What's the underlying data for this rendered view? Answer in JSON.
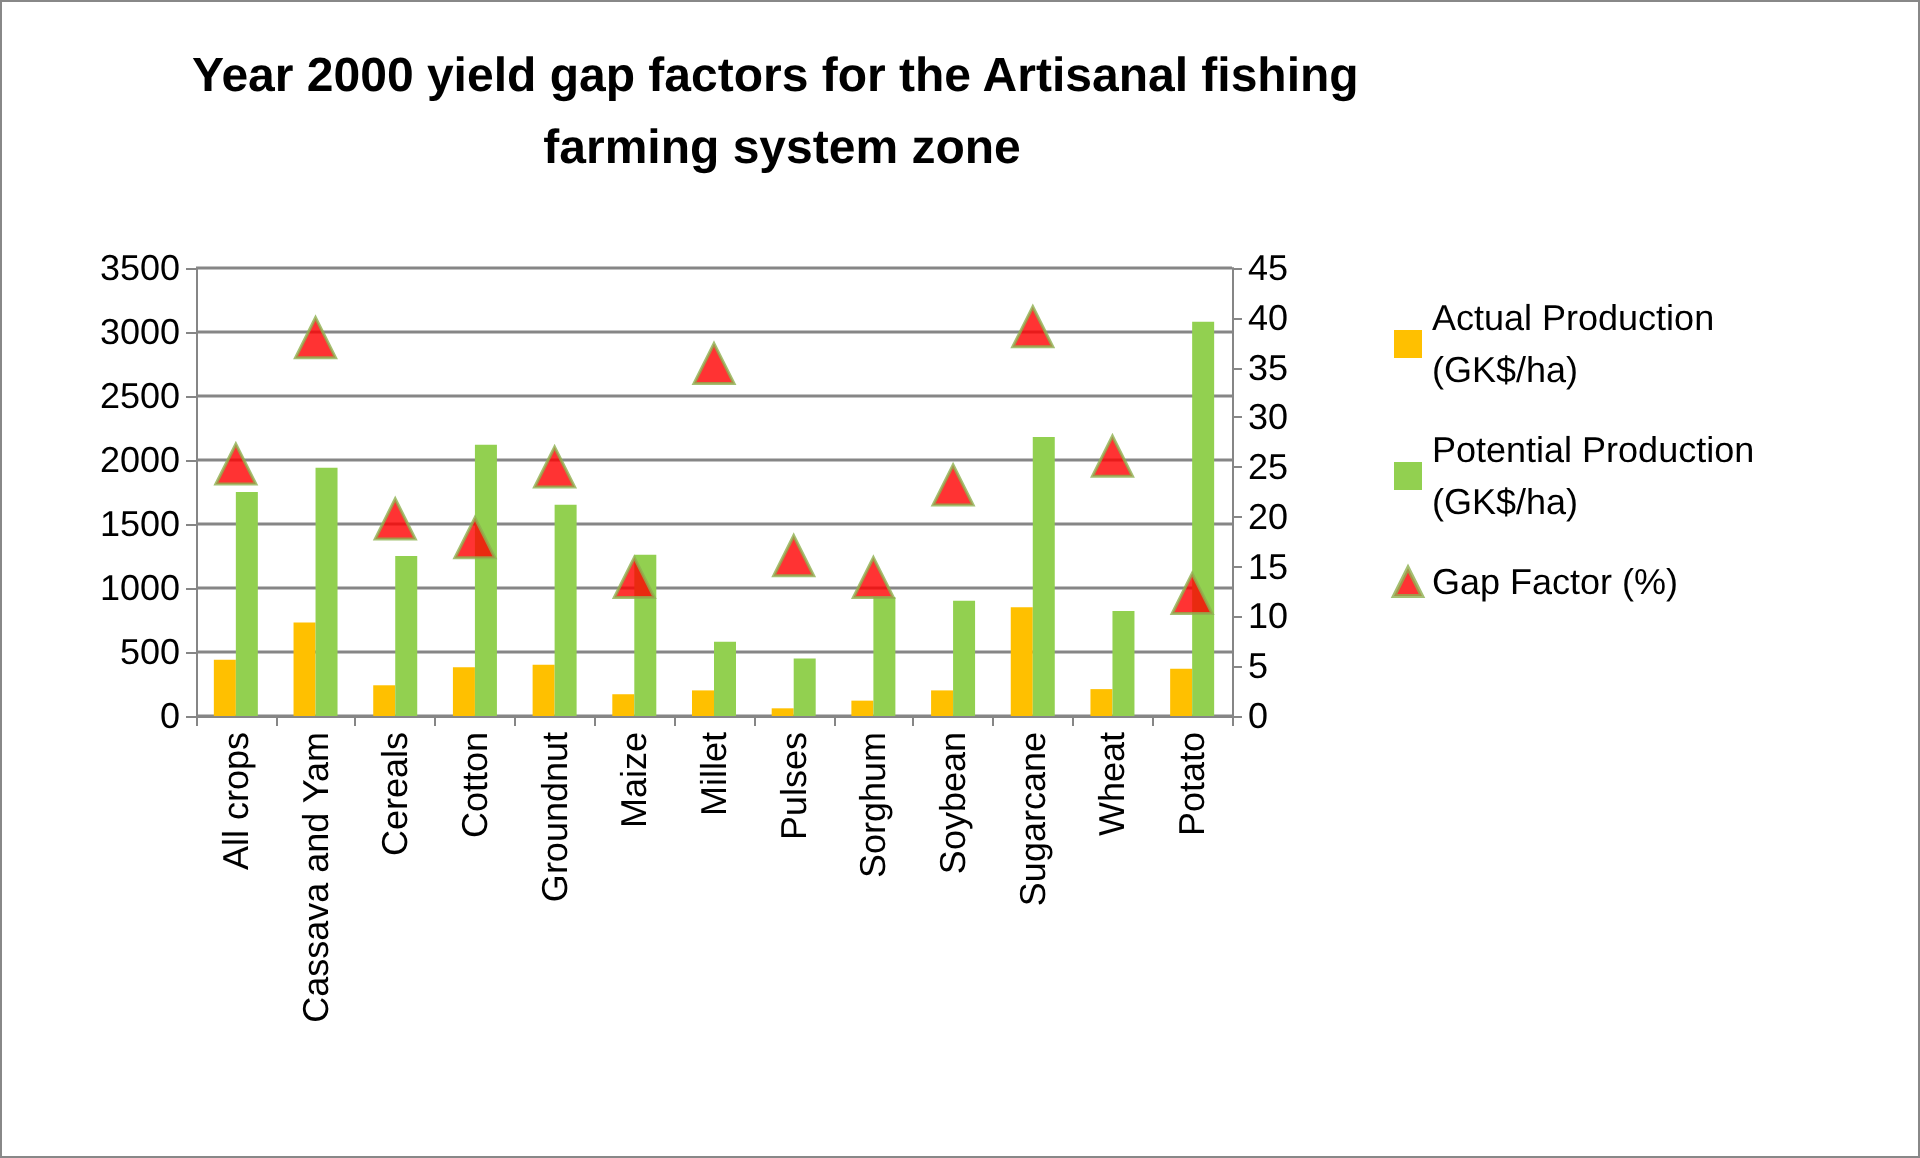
{
  "chart_data": {
    "type": "bar",
    "title": "Year 2000 yield gap factors for the Artisanal fishing farming system zone",
    "categories": [
      "All crops",
      "Cassava and Yam",
      "Cereals",
      "Cotton",
      "Groundnut",
      "Maize",
      "Millet",
      "Pulses",
      "Sorghum",
      "Soybean",
      "Sugarcane",
      "Wheat",
      "Potato"
    ],
    "series": [
      {
        "name": "Actual Production (GK$/ha)",
        "color": "#ffc000",
        "values": [
          440,
          730,
          240,
          380,
          400,
          170,
          200,
          60,
          120,
          200,
          850,
          210,
          370
        ]
      },
      {
        "name": "Potential Production (GK$/ha)",
        "color": "#92d050",
        "values": [
          1750,
          1940,
          1250,
          2120,
          1650,
          1260,
          580,
          450,
          930,
          900,
          2180,
          820,
          3080
        ]
      },
      {
        "name": "Gap Factor (%)",
        "type": "scatter",
        "axis": "y2",
        "color": "#ff0000",
        "marker": "triangle",
        "values": [
          25.3,
          38.0,
          19.8,
          17.9,
          25.0,
          13.9,
          35.4,
          16.1,
          13.9,
          23.2,
          39.1,
          26.1,
          12.3
        ]
      }
    ],
    "ylim": [
      0,
      3500
    ],
    "yticks": [
      0,
      500,
      1000,
      1500,
      2000,
      2500,
      3000,
      3500
    ],
    "y2lim": [
      0,
      45
    ],
    "y2ticks": [
      0,
      5,
      10,
      15,
      20,
      25,
      30,
      35,
      40,
      45
    ],
    "grid": "y",
    "legend": "right"
  }
}
